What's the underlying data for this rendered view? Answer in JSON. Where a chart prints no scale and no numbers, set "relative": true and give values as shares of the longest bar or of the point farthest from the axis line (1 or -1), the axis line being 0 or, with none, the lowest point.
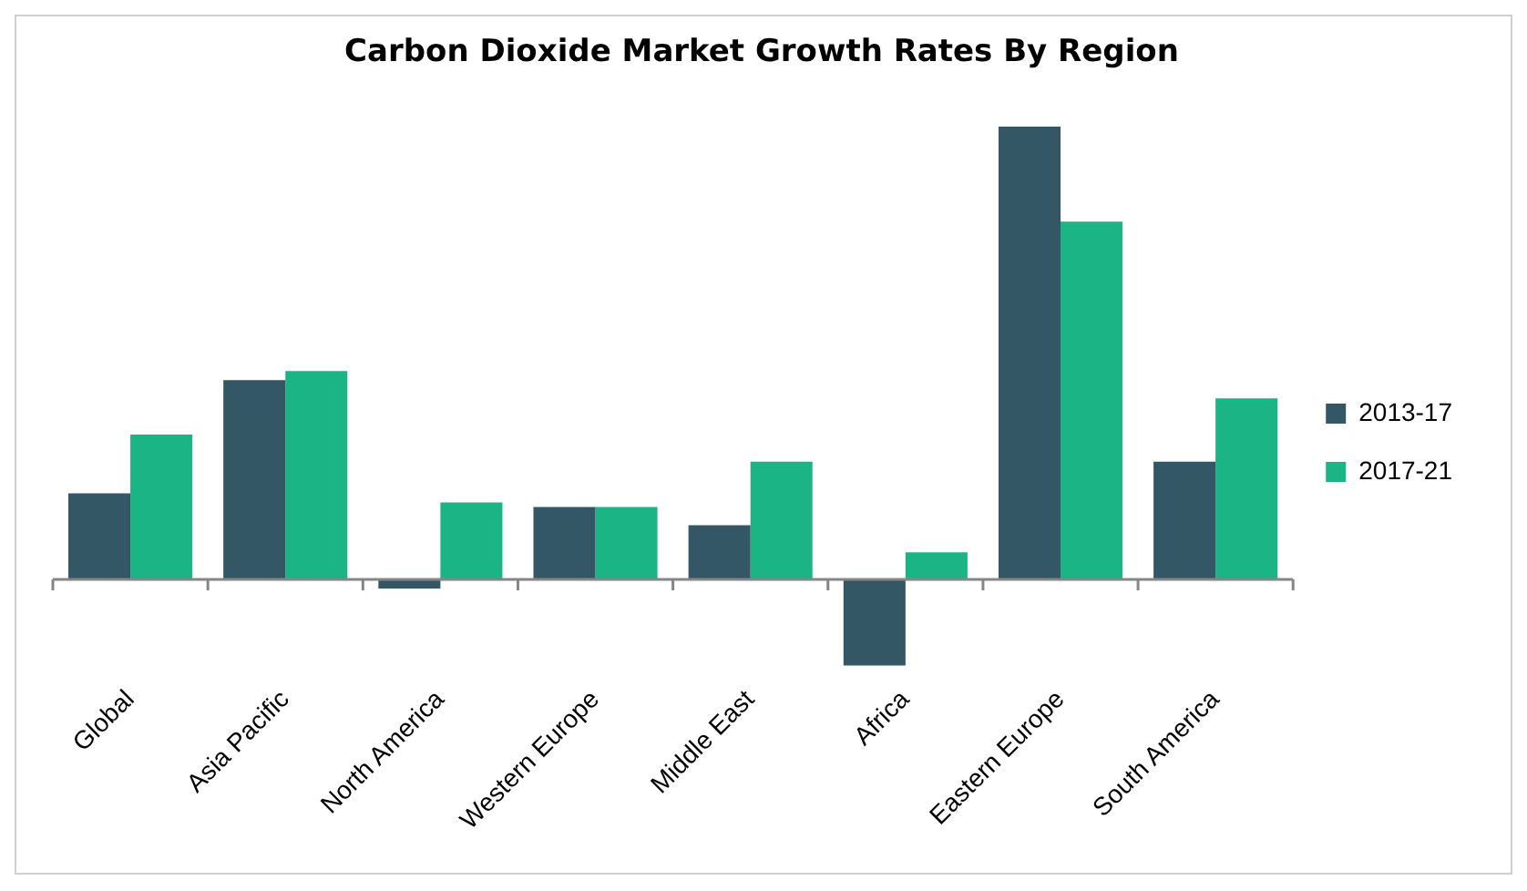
{
  "chart_data": {
    "type": "bar",
    "title": "Carbon Dioxide Market Growth Rates By Region",
    "relative": true,
    "legend": "right",
    "grid": false,
    "categories": [
      "Global",
      "Asia Pacific",
      "North America",
      "Western Europe",
      "Middle East",
      "Africa",
      "Eastern Europe",
      "South America"
    ],
    "series": [
      {
        "name": "2013-17",
        "color": "#335765",
        "values": [
          0.19,
          0.44,
          -0.02,
          0.16,
          0.12,
          -0.19,
          1,
          0.26
        ]
      },
      {
        "name": "2017-21",
        "color": "#1bb585",
        "values": [
          0.32,
          0.46,
          0.17,
          0.16,
          0.26,
          0.06,
          0.79,
          0.4
        ]
      }
    ]
  }
}
